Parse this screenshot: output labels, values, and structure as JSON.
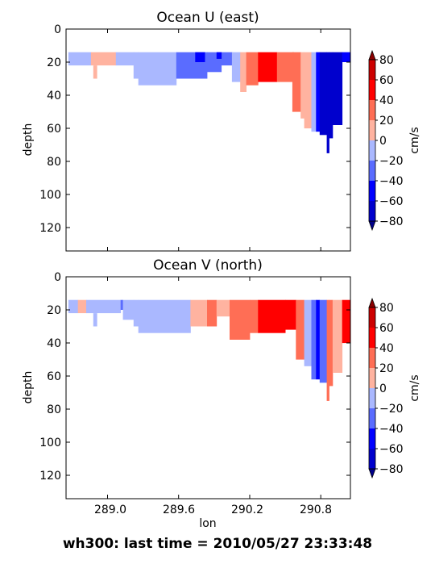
{
  "caption": "wh300: last time = 2010/05/27 23:33:48",
  "colors": {
    "bins": [
      "#00008b",
      "#0000cd",
      "#0000ff",
      "#5a6cff",
      "#aab8ff",
      "#ffb3a0",
      "#ff6e55",
      "#ff0000",
      "#cd0000",
      "#8b0000"
    ]
  },
  "chart_data": [
    {
      "type": "contourf",
      "title": "Ocean U (east)",
      "xlabel": "",
      "ylabel": "depth",
      "xlim": [
        288.65,
        291.05
      ],
      "ylim": [
        134,
        0
      ],
      "x_ticks": [],
      "y_ticks": [
        "0",
        "20",
        "40",
        "60",
        "80",
        "100",
        "120"
      ],
      "colorbar": {
        "label": "cm/s",
        "ticks": [
          "80",
          "60",
          "40",
          "20",
          "0",
          "−20",
          "−40",
          "−60",
          "−80"
        ],
        "levels": [
          -80,
          -60,
          -40,
          -20,
          0,
          20,
          40,
          60,
          80
        ]
      },
      "cells": [
        {
          "x0": 288.67,
          "x1": 288.86,
          "d0": 14,
          "d1": 22,
          "v": -10
        },
        {
          "x0": 288.86,
          "x1": 289.07,
          "d0": 14,
          "d1": 22,
          "v": 10
        },
        {
          "x0": 288.88,
          "x1": 288.91,
          "d0": 22,
          "d1": 30,
          "v": 10
        },
        {
          "x0": 289.07,
          "x1": 289.22,
          "d0": 14,
          "d1": 22,
          "v": -10
        },
        {
          "x0": 289.22,
          "x1": 289.26,
          "d0": 14,
          "d1": 30,
          "v": -10
        },
        {
          "x0": 289.26,
          "x1": 289.58,
          "d0": 14,
          "d1": 34,
          "v": -10
        },
        {
          "x0": 289.58,
          "x1": 289.84,
          "d0": 14,
          "d1": 30,
          "v": -30
        },
        {
          "x0": 289.74,
          "x1": 289.82,
          "d0": 14,
          "d1": 20,
          "v": -50
        },
        {
          "x0": 289.84,
          "x1": 289.96,
          "d0": 14,
          "d1": 26,
          "v": -30
        },
        {
          "x0": 289.96,
          "x1": 290.05,
          "d0": 14,
          "d1": 22,
          "v": -30
        },
        {
          "x0": 289.92,
          "x1": 289.96,
          "d0": 14,
          "d1": 18,
          "v": -50
        },
        {
          "x0": 290.05,
          "x1": 290.12,
          "d0": 14,
          "d1": 32,
          "v": -10
        },
        {
          "x0": 290.12,
          "x1": 290.17,
          "d0": 14,
          "d1": 38,
          "v": 10
        },
        {
          "x0": 290.17,
          "x1": 290.27,
          "d0": 14,
          "d1": 34,
          "v": 30
        },
        {
          "x0": 290.27,
          "x1": 290.43,
          "d0": 14,
          "d1": 32,
          "v": 50
        },
        {
          "x0": 290.43,
          "x1": 290.57,
          "d0": 14,
          "d1": 32,
          "v": 30
        },
        {
          "x0": 290.56,
          "x1": 290.63,
          "d0": 14,
          "d1": 50,
          "v": 30
        },
        {
          "x0": 290.63,
          "x1": 290.66,
          "d0": 14,
          "d1": 54,
          "v": 10
        },
        {
          "x0": 290.66,
          "x1": 290.72,
          "d0": 14,
          "d1": 60,
          "v": 10
        },
        {
          "x0": 290.72,
          "x1": 290.76,
          "d0": 14,
          "d1": 62,
          "v": -10
        },
        {
          "x0": 290.76,
          "x1": 290.79,
          "d0": 14,
          "d1": 62,
          "v": -50
        },
        {
          "x0": 290.79,
          "x1": 290.85,
          "d0": 14,
          "d1": 64,
          "v": -70
        },
        {
          "x0": 290.85,
          "x1": 290.87,
          "d0": 14,
          "d1": 75,
          "v": -70
        },
        {
          "x0": 290.87,
          "x1": 290.9,
          "d0": 14,
          "d1": 66,
          "v": -70
        },
        {
          "x0": 290.9,
          "x1": 290.98,
          "d0": 14,
          "d1": 58,
          "v": -70
        },
        {
          "x0": 290.98,
          "x1": 291.05,
          "d0": 14,
          "d1": 20,
          "v": -50
        }
      ]
    },
    {
      "type": "contourf",
      "title": "Ocean V (north)",
      "xlabel": "lon",
      "ylabel": "depth",
      "xlim": [
        288.65,
        291.05
      ],
      "ylim": [
        134,
        0
      ],
      "x_ticks": [
        "289.0",
        "289.6",
        "290.2",
        "290.8"
      ],
      "y_ticks": [
        "0",
        "20",
        "40",
        "60",
        "80",
        "100",
        "120"
      ],
      "colorbar": {
        "label": "cm/s",
        "ticks": [
          "80",
          "60",
          "40",
          "20",
          "0",
          "−20",
          "−40",
          "−60",
          "−80"
        ],
        "levels": [
          -80,
          -60,
          -40,
          -20,
          0,
          20,
          40,
          60,
          80
        ]
      },
      "cells": [
        {
          "x0": 288.67,
          "x1": 288.75,
          "d0": 14,
          "d1": 22,
          "v": -10
        },
        {
          "x0": 288.75,
          "x1": 288.82,
          "d0": 14,
          "d1": 22,
          "v": 10
        },
        {
          "x0": 288.82,
          "x1": 289.11,
          "d0": 14,
          "d1": 22,
          "v": -10
        },
        {
          "x0": 288.88,
          "x1": 288.91,
          "d0": 22,
          "d1": 30,
          "v": -10
        },
        {
          "x0": 289.11,
          "x1": 289.13,
          "d0": 14,
          "d1": 20,
          "v": -30
        },
        {
          "x0": 289.13,
          "x1": 289.22,
          "d0": 14,
          "d1": 26,
          "v": -10
        },
        {
          "x0": 289.22,
          "x1": 289.26,
          "d0": 14,
          "d1": 30,
          "v": -10
        },
        {
          "x0": 289.26,
          "x1": 289.7,
          "d0": 14,
          "d1": 34,
          "v": -10
        },
        {
          "x0": 289.7,
          "x1": 289.84,
          "d0": 14,
          "d1": 30,
          "v": 10
        },
        {
          "x0": 289.84,
          "x1": 289.92,
          "d0": 14,
          "d1": 30,
          "v": 30
        },
        {
          "x0": 289.92,
          "x1": 290.03,
          "d0": 14,
          "d1": 24,
          "v": 10
        },
        {
          "x0": 290.03,
          "x1": 290.2,
          "d0": 14,
          "d1": 38,
          "v": 30
        },
        {
          "x0": 290.2,
          "x1": 290.27,
          "d0": 14,
          "d1": 34,
          "v": 30
        },
        {
          "x0": 290.27,
          "x1": 290.5,
          "d0": 14,
          "d1": 34,
          "v": 50
        },
        {
          "x0": 290.5,
          "x1": 290.59,
          "d0": 14,
          "d1": 32,
          "v": 50
        },
        {
          "x0": 290.59,
          "x1": 290.66,
          "d0": 14,
          "d1": 50,
          "v": 30
        },
        {
          "x0": 290.66,
          "x1": 290.72,
          "d0": 14,
          "d1": 54,
          "v": -10
        },
        {
          "x0": 290.72,
          "x1": 290.76,
          "d0": 14,
          "d1": 62,
          "v": -30
        },
        {
          "x0": 290.76,
          "x1": 290.79,
          "d0": 14,
          "d1": 62,
          "v": -50
        },
        {
          "x0": 290.79,
          "x1": 290.85,
          "d0": 14,
          "d1": 64,
          "v": -30
        },
        {
          "x0": 290.85,
          "x1": 290.87,
          "d0": 14,
          "d1": 75,
          "v": 30
        },
        {
          "x0": 290.87,
          "x1": 290.9,
          "d0": 14,
          "d1": 66,
          "v": 30
        },
        {
          "x0": 290.9,
          "x1": 290.98,
          "d0": 14,
          "d1": 58,
          "v": 10
        },
        {
          "x0": 290.98,
          "x1": 291.05,
          "d0": 14,
          "d1": 40,
          "v": 50
        }
      ]
    }
  ]
}
